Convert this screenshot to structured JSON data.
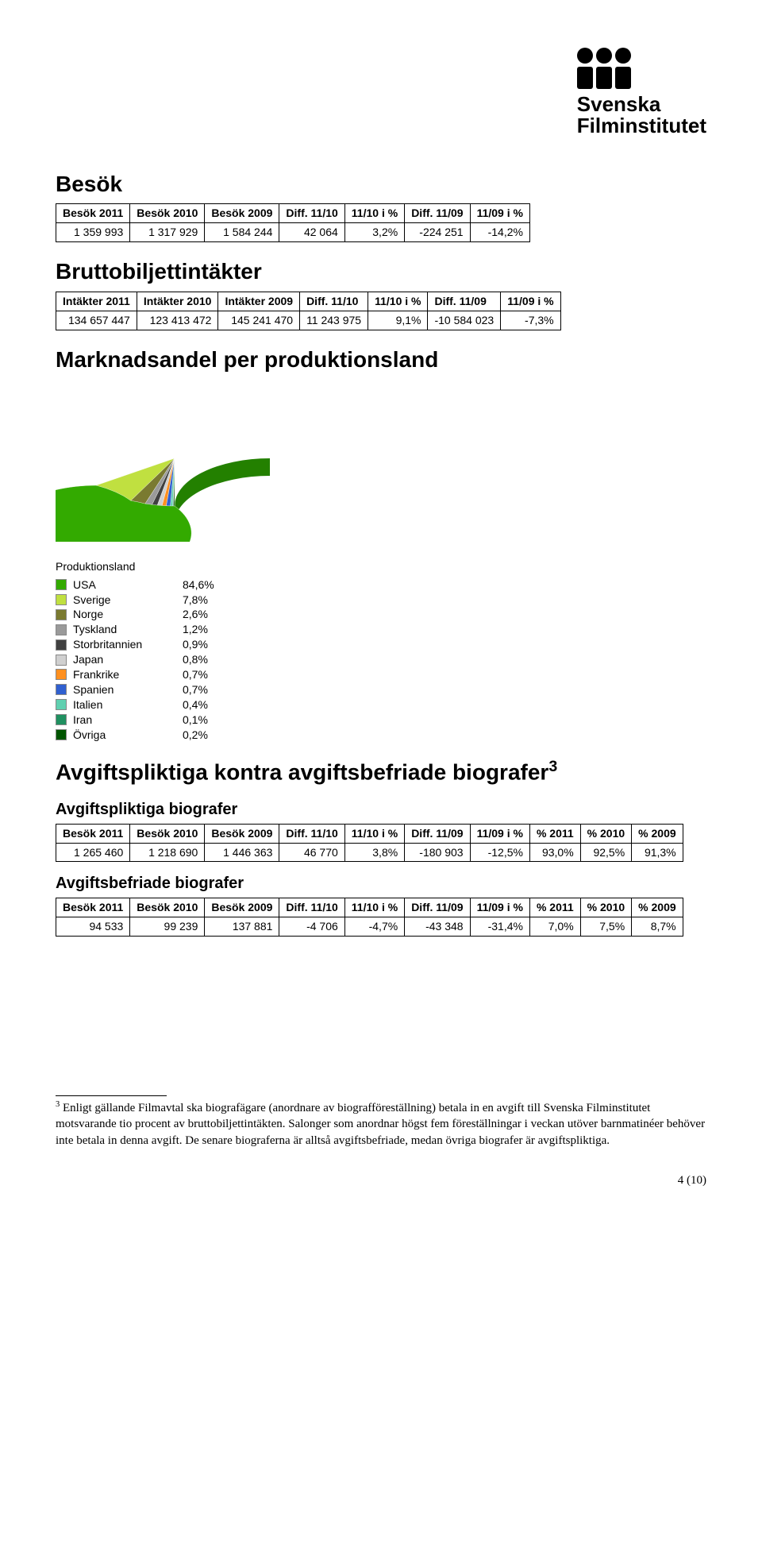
{
  "logo": {
    "line1": "Svenska",
    "line2": "Filminstitutet"
  },
  "besok": {
    "heading": "Besök",
    "columns": [
      "Besök 2011",
      "Besök 2010",
      "Besök 2009",
      "Diff. 11/10",
      "11/10 i %",
      "Diff. 11/09",
      "11/09 i %"
    ],
    "row": [
      "1 359 993",
      "1 317 929",
      "1 584 244",
      "42 064",
      "3,2%",
      "-224 251",
      "-14,2%"
    ]
  },
  "brutto": {
    "heading": "Bruttobiljettintäkter",
    "columns": [
      "Intäkter 2011",
      "Intäkter 2010",
      "Intäkter 2009",
      "Diff. 11/10",
      "11/10 i %",
      "Diff. 11/09",
      "11/09 i %"
    ],
    "row": [
      "134 657 447",
      "123 413 472",
      "145 241 470",
      "11 243 975",
      "9,1%",
      "-10 584 023",
      "-7,3%"
    ]
  },
  "marknadsandel": {
    "heading": "Marknadsandel per produktionsland",
    "chart": {
      "type": "pie",
      "background_color": "#ffffff",
      "radius": 120,
      "tilt": 0.5,
      "depth": 22,
      "legend_title": "Produktionsland",
      "legend_fontfamily": "Tahoma",
      "legend_fontsize": 14,
      "slices": [
        {
          "label": "USA",
          "pct": "84,6%",
          "value": 84.6,
          "color": "#33aa00",
          "depth_color": "#238000"
        },
        {
          "label": "Sverige",
          "pct": "7,8%",
          "value": 7.8,
          "color": "#c0e040",
          "depth_color": "#9ab830"
        },
        {
          "label": "Norge",
          "pct": "2,6%",
          "value": 2.6,
          "color": "#7a7a30",
          "depth_color": "#5a5a20"
        },
        {
          "label": "Tyskland",
          "pct": "1,2%",
          "value": 1.2,
          "color": "#9a9a9a",
          "depth_color": "#707070"
        },
        {
          "label": "Storbritannien",
          "pct": "0,9%",
          "value": 0.9,
          "color": "#404040",
          "depth_color": "#202020"
        },
        {
          "label": "Japan",
          "pct": "0,8%",
          "value": 0.8,
          "color": "#d0d0d0",
          "depth_color": "#a8a8a8"
        },
        {
          "label": "Frankrike",
          "pct": "0,7%",
          "value": 0.7,
          "color": "#ff9020",
          "depth_color": "#cc6e10"
        },
        {
          "label": "Spanien",
          "pct": "0,7%",
          "value": 0.7,
          "color": "#3060d0",
          "depth_color": "#2048a0"
        },
        {
          "label": "Italien",
          "pct": "0,4%",
          "value": 0.4,
          "color": "#60d0b0",
          "depth_color": "#40a888"
        },
        {
          "label": "Iran",
          "pct": "0,1%",
          "value": 0.1,
          "color": "#209060",
          "depth_color": "#107040"
        },
        {
          "label": "Övriga",
          "pct": "0,2%",
          "value": 0.2,
          "color": "#005500",
          "depth_color": "#003800"
        }
      ]
    }
  },
  "avgift_heading": "Avgiftspliktiga kontra avgiftsbefriade biografer",
  "avgift_super": "3",
  "avgiftspliktiga": {
    "heading": "Avgiftspliktiga biografer",
    "columns": [
      "Besök 2011",
      "Besök 2010",
      "Besök 2009",
      "Diff. 11/10",
      "11/10 i %",
      "Diff. 11/09",
      "11/09 i %",
      "% 2011",
      "% 2010",
      "% 2009"
    ],
    "row": [
      "1 265 460",
      "1 218 690",
      "1 446 363",
      "46 770",
      "3,8%",
      "-180 903",
      "-12,5%",
      "93,0%",
      "92,5%",
      "91,3%"
    ]
  },
  "avgiftsbefriade": {
    "heading": "Avgiftsbefriade biografer",
    "columns": [
      "Besök 2011",
      "Besök 2010",
      "Besök 2009",
      "Diff. 11/10",
      "11/10 i %",
      "Diff. 11/09",
      "11/09 i %",
      "% 2011",
      "% 2010",
      "% 2009"
    ],
    "row": [
      "94 533",
      "99 239",
      "137 881",
      "-4 706",
      "-4,7%",
      "-43 348",
      "-31,4%",
      "7,0%",
      "7,5%",
      "8,7%"
    ]
  },
  "footnote": {
    "marker": "3",
    "text": " Enligt gällande Filmavtal ska biografägare (anordnare av biografföreställning) betala in en avgift till Svenska Filminstitutet motsvarande tio procent av bruttobiljettintäkten. Salonger som anordnar högst fem föreställningar i veckan utöver barnmatinéer behöver inte betala in denna avgift. De senare biograferna är alltså avgiftsbefriade, medan övriga biografer är avgiftspliktiga."
  },
  "page_number": "4 (10)"
}
